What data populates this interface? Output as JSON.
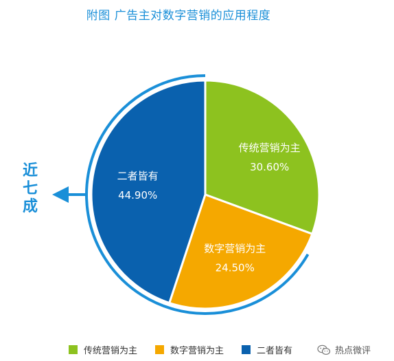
{
  "title": "附图 广告主对数字营销的应用程度",
  "callout": {
    "chars": [
      "近",
      "七",
      "成"
    ],
    "color": "#1a8fd8"
  },
  "colors": {
    "outer_ring": "#1a8fd8"
  },
  "chart_data": {
    "type": "pie",
    "title": "附图 广告主对数字营销的应用程度",
    "slices": [
      {
        "name": "传统营销为主",
        "value": 30.6,
        "label": "30.60%",
        "color": "#8dc21f"
      },
      {
        "name": "数字营销为主",
        "value": 24.5,
        "label": "24.50%",
        "color": "#f5a800"
      },
      {
        "name": "二者皆有",
        "value": 44.9,
        "label": "44.90%",
        "color": "#0a61ae"
      }
    ],
    "legend_position": "bottom"
  },
  "legend": [
    {
      "label": "传统营销为主",
      "color": "#8dc21f"
    },
    {
      "label": "数字营销为主",
      "color": "#f5a800"
    },
    {
      "label": "二者皆有",
      "color": "#0a61ae"
    }
  ],
  "watermark": {
    "text": "热点微评",
    "icon": "wechat-icon"
  }
}
